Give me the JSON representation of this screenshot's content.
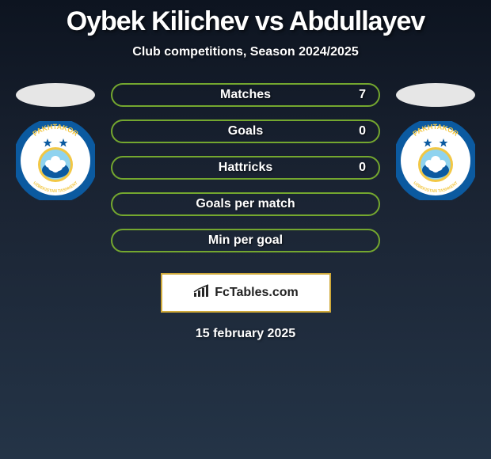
{
  "header": {
    "title": "Oybek Kilichev vs Abdullayev",
    "title_fontsize": 34,
    "title_color": "#ffffff",
    "subtitle": "Club competitions, Season 2024/2025",
    "subtitle_fontsize": 16,
    "subtitle_color": "#ffffff"
  },
  "players": {
    "left": {
      "ellipse_color": "#e6e6e6",
      "club_name": "PAKHTAKOR",
      "club_sub": "UZBEKISTAN TASHKENT",
      "club_colors": {
        "ring": "#0b5aa0",
        "inner": "#ffffff",
        "star": "#0b5aa0",
        "gold": "#f2c744",
        "sky": "#8fd3ef",
        "cotton": "#ffffff"
      }
    },
    "right": {
      "ellipse_color": "#e6e6e6",
      "club_name": "PAKHTAKOR",
      "club_sub": "UZBEKISTAN TASHKENT",
      "club_colors": {
        "ring": "#0b5aa0",
        "inner": "#ffffff",
        "star": "#0b5aa0",
        "gold": "#f2c744",
        "sky": "#8fd3ef",
        "cotton": "#ffffff"
      }
    }
  },
  "stats": {
    "pill_border": "#74a72f",
    "label_fontsize": 16,
    "value_fontsize": 16,
    "rows": [
      {
        "label": "Matches",
        "right_value": "7"
      },
      {
        "label": "Goals",
        "right_value": "0"
      },
      {
        "label": "Hattricks",
        "right_value": "0"
      },
      {
        "label": "Goals per match",
        "right_value": ""
      },
      {
        "label": "Min per goal",
        "right_value": ""
      }
    ]
  },
  "brand": {
    "text": "FcTables.com",
    "border_color": "#cfa93a",
    "icon_color": "#272727"
  },
  "footer": {
    "date": "15 february 2025",
    "date_fontsize": 16
  },
  "background": {
    "gradient_top": "#0d1420",
    "gradient_mid": "#1a2332",
    "gradient_bottom": "#243447"
  }
}
